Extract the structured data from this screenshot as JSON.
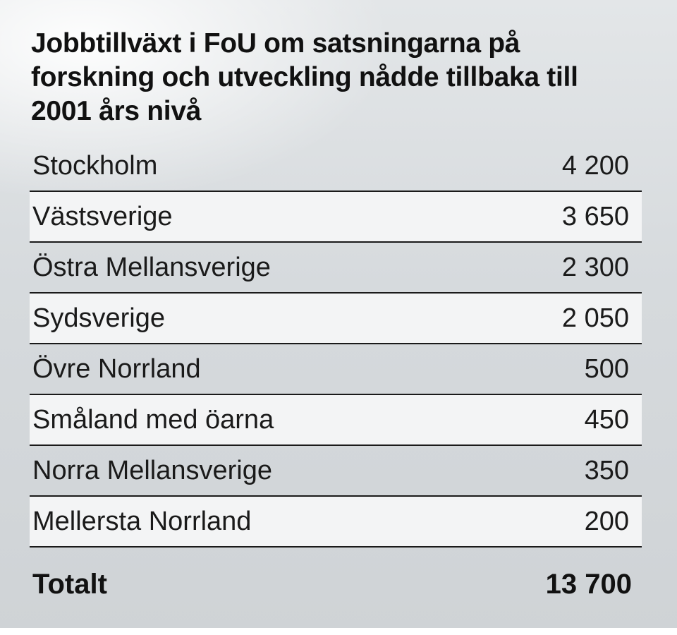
{
  "chart_data": {
    "type": "table",
    "title": "Jobbtillväxt i FoU om satsningarna på forskning och utveckling nådde tillbaka till 2001 års nivå",
    "rows": [
      {
        "region": "Stockholm",
        "value": 4200,
        "display": "4 200"
      },
      {
        "region": "Västsverige",
        "value": 3650,
        "display": "3 650"
      },
      {
        "region": "Östra Mellansverige",
        "value": 2300,
        "display": "2 300"
      },
      {
        "region": "Sydsverige",
        "value": 2050,
        "display": "2 050"
      },
      {
        "region": "Övre Norrland",
        "value": 500,
        "display": "500"
      },
      {
        "region": "Småland med öarna",
        "value": 450,
        "display": "450"
      },
      {
        "region": "Norra Mellansverige",
        "value": 350,
        "display": "350"
      },
      {
        "region": "Mellersta Norrland",
        "value": 200,
        "display": "200"
      }
    ],
    "total": {
      "label": "Totalt",
      "value": 13700,
      "display": "13 700"
    }
  },
  "colors": {
    "text": "#111111",
    "row_alt_bg": "#f3f4f5",
    "divider": "#1a1a1a"
  }
}
